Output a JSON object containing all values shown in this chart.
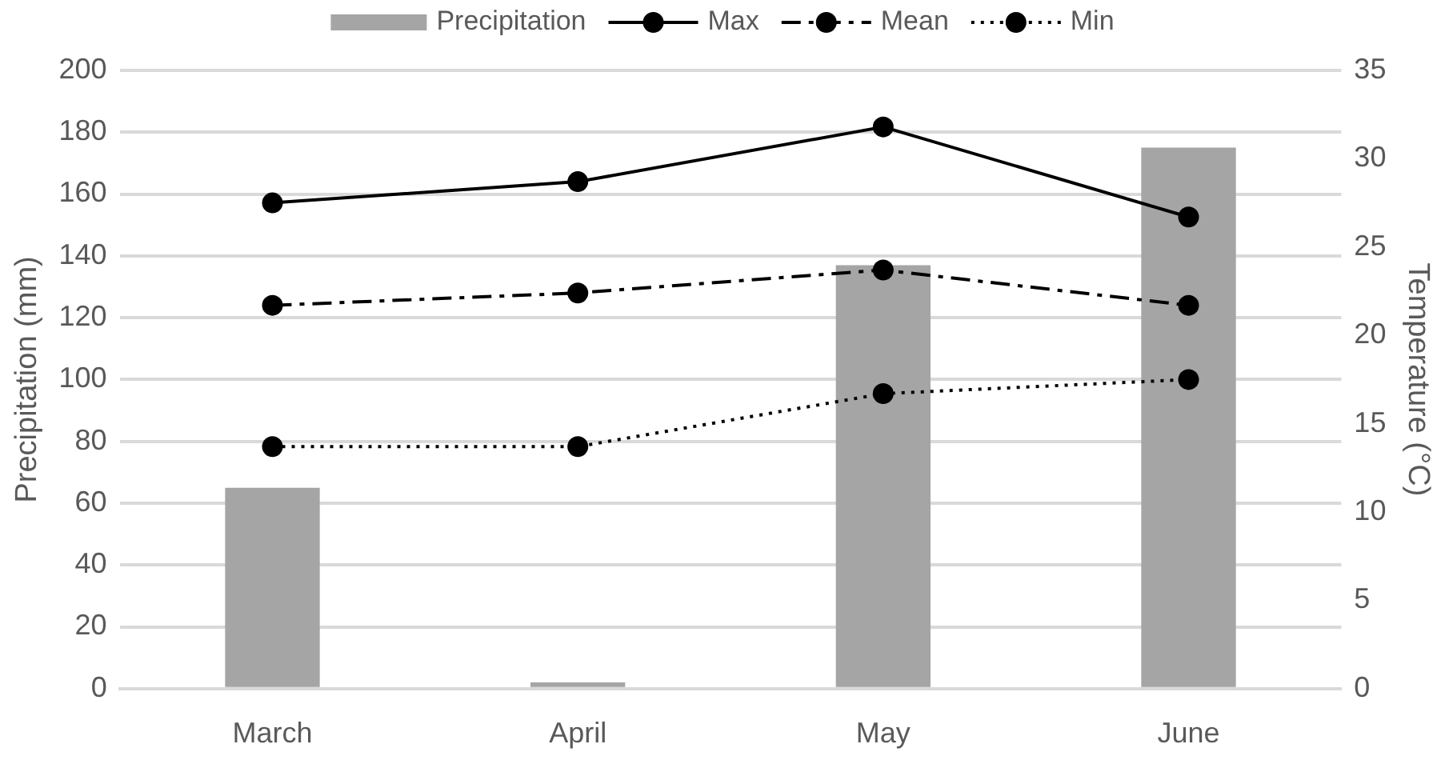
{
  "chart_data": {
    "type": "bar",
    "categories": [
      "March",
      "April",
      "May",
      "June"
    ],
    "ylabel": "Precipitation (mm)",
    "y2label": "Temperature (°C)",
    "ylim": [
      0,
      200
    ],
    "yticks": [
      0,
      20,
      40,
      60,
      80,
      100,
      120,
      140,
      160,
      180,
      200
    ],
    "y2lim": [
      0,
      35
    ],
    "y2ticks": [
      0,
      5,
      10,
      15,
      20,
      25,
      30,
      35
    ],
    "grid": "y",
    "legend": "top",
    "series": [
      {
        "name": "Precipitation",
        "color": "#a5a5a5",
        "values": [
          65,
          2,
          137,
          175
        ]
      },
      {
        "name": "Max",
        "type": "line",
        "axis": "y2",
        "color": "#000000",
        "line_style": "solid",
        "marker": "circle",
        "values": [
          27.5,
          28.7,
          31.8,
          26.7
        ]
      },
      {
        "name": "Mean",
        "type": "line",
        "axis": "y2",
        "color": "#000000",
        "line_style": "dashdot",
        "marker": "circle",
        "values": [
          21.7,
          22.4,
          23.7,
          21.7
        ]
      },
      {
        "name": "Min",
        "type": "line",
        "axis": "y2",
        "color": "#000000",
        "line_style": "dotted",
        "marker": "circle",
        "values": [
          13.7,
          13.7,
          16.7,
          17.5
        ]
      }
    ]
  }
}
